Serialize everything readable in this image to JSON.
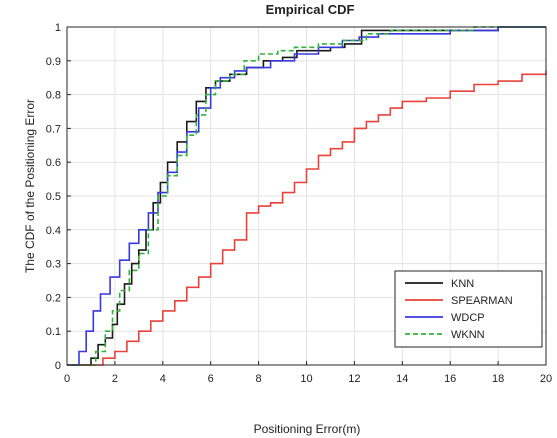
{
  "chart_data": {
    "type": "line",
    "title": "Empirical CDF",
    "xlabel": "Positioning Error(m)",
    "ylabel": "The CDF of the Positioning Error",
    "xlim": [
      0,
      20
    ],
    "ylim": [
      0,
      1
    ],
    "xticks": [
      "0",
      "2",
      "4",
      "6",
      "8",
      "10",
      "12",
      "14",
      "16",
      "18",
      "20"
    ],
    "yticks": [
      "0",
      "0.1",
      "0.2",
      "0.3",
      "0.4",
      "0.5",
      "0.6",
      "0.7",
      "0.8",
      "0.9",
      "1"
    ],
    "grid": true,
    "legend_position": "bottom-right",
    "series": [
      {
        "name": "KNN",
        "color": "#1a1a1a",
        "dash": "solid",
        "points": [
          [
            0.0,
            0.0
          ],
          [
            0.5,
            0.0
          ],
          [
            1.0,
            0.02
          ],
          [
            1.3,
            0.06
          ],
          [
            1.6,
            0.08
          ],
          [
            1.9,
            0.12
          ],
          [
            2.1,
            0.18
          ],
          [
            2.4,
            0.24
          ],
          [
            2.7,
            0.3
          ],
          [
            3.0,
            0.34
          ],
          [
            3.3,
            0.4
          ],
          [
            3.6,
            0.48
          ],
          [
            3.9,
            0.54
          ],
          [
            4.2,
            0.6
          ],
          [
            4.6,
            0.66
          ],
          [
            5.0,
            0.72
          ],
          [
            5.4,
            0.78
          ],
          [
            5.8,
            0.82
          ],
          [
            6.2,
            0.84
          ],
          [
            6.8,
            0.86
          ],
          [
            7.5,
            0.88
          ],
          [
            8.2,
            0.9
          ],
          [
            9.0,
            0.91
          ],
          [
            9.6,
            0.93
          ],
          [
            10.2,
            0.93
          ],
          [
            11.0,
            0.94
          ],
          [
            11.6,
            0.95
          ],
          [
            12.3,
            0.99
          ],
          [
            13.5,
            0.99
          ],
          [
            14.8,
            0.99
          ],
          [
            15.2,
            0.99
          ],
          [
            17.0,
            0.99
          ],
          [
            18.0,
            1.0
          ],
          [
            20.0,
            1.0
          ]
        ]
      },
      {
        "name": "SPEARMAN",
        "color": "#e8423a",
        "dash": "solid",
        "points": [
          [
            0.0,
            0.0
          ],
          [
            1.0,
            0.0
          ],
          [
            1.5,
            0.02
          ],
          [
            2.0,
            0.04
          ],
          [
            2.5,
            0.07
          ],
          [
            3.0,
            0.1
          ],
          [
            3.5,
            0.13
          ],
          [
            4.0,
            0.16
          ],
          [
            4.5,
            0.19
          ],
          [
            5.0,
            0.23
          ],
          [
            5.5,
            0.26
          ],
          [
            6.0,
            0.3
          ],
          [
            6.5,
            0.34
          ],
          [
            7.0,
            0.37
          ],
          [
            7.5,
            0.45
          ],
          [
            8.0,
            0.47
          ],
          [
            8.5,
            0.48
          ],
          [
            9.0,
            0.51
          ],
          [
            9.5,
            0.54
          ],
          [
            10.0,
            0.58
          ],
          [
            10.5,
            0.62
          ],
          [
            11.0,
            0.64
          ],
          [
            11.5,
            0.66
          ],
          [
            12.0,
            0.7
          ],
          [
            12.5,
            0.72
          ],
          [
            13.0,
            0.74
          ],
          [
            13.5,
            0.76
          ],
          [
            14.0,
            0.78
          ],
          [
            15.0,
            0.79
          ],
          [
            16.0,
            0.81
          ],
          [
            17.0,
            0.83
          ],
          [
            18.0,
            0.84
          ],
          [
            19.0,
            0.86
          ],
          [
            20.0,
            0.87
          ]
        ]
      },
      {
        "name": "WDCP",
        "color": "#3838e0",
        "dash": "solid",
        "points": [
          [
            0.0,
            0.0
          ],
          [
            0.5,
            0.04
          ],
          [
            0.8,
            0.1
          ],
          [
            1.1,
            0.16
          ],
          [
            1.4,
            0.21
          ],
          [
            1.8,
            0.26
          ],
          [
            2.2,
            0.31
          ],
          [
            2.6,
            0.36
          ],
          [
            3.0,
            0.4
          ],
          [
            3.4,
            0.45
          ],
          [
            3.8,
            0.51
          ],
          [
            4.2,
            0.57
          ],
          [
            4.6,
            0.63
          ],
          [
            5.0,
            0.69
          ],
          [
            5.5,
            0.76
          ],
          [
            6.0,
            0.82
          ],
          [
            6.4,
            0.85
          ],
          [
            7.0,
            0.87
          ],
          [
            7.5,
            0.88
          ],
          [
            8.5,
            0.9
          ],
          [
            9.5,
            0.92
          ],
          [
            10.5,
            0.94
          ],
          [
            11.5,
            0.96
          ],
          [
            12.2,
            0.97
          ],
          [
            13.0,
            0.98
          ],
          [
            15.0,
            0.98
          ],
          [
            16.0,
            0.99
          ],
          [
            17.5,
            0.99
          ],
          [
            18.0,
            1.0
          ],
          [
            20.0,
            1.0
          ]
        ]
      },
      {
        "name": "WKNN",
        "color": "#33b03a",
        "dash": "dashed",
        "points": [
          [
            0.0,
            0.0
          ],
          [
            0.8,
            0.0
          ],
          [
            1.2,
            0.04
          ],
          [
            1.6,
            0.1
          ],
          [
            1.9,
            0.16
          ],
          [
            2.2,
            0.22
          ],
          [
            2.6,
            0.28
          ],
          [
            3.0,
            0.33
          ],
          [
            3.4,
            0.4
          ],
          [
            3.8,
            0.5
          ],
          [
            4.2,
            0.56
          ],
          [
            4.6,
            0.62
          ],
          [
            5.0,
            0.68
          ],
          [
            5.4,
            0.74
          ],
          [
            5.8,
            0.8
          ],
          [
            6.2,
            0.84
          ],
          [
            6.8,
            0.86
          ],
          [
            7.4,
            0.9
          ],
          [
            8.0,
            0.92
          ],
          [
            8.8,
            0.93
          ],
          [
            9.5,
            0.94
          ],
          [
            10.5,
            0.95
          ],
          [
            11.5,
            0.96
          ],
          [
            12.5,
            0.98
          ],
          [
            13.5,
            0.99
          ],
          [
            15.0,
            0.99
          ],
          [
            17.0,
            1.0
          ],
          [
            20.0,
            1.0
          ]
        ]
      }
    ]
  }
}
